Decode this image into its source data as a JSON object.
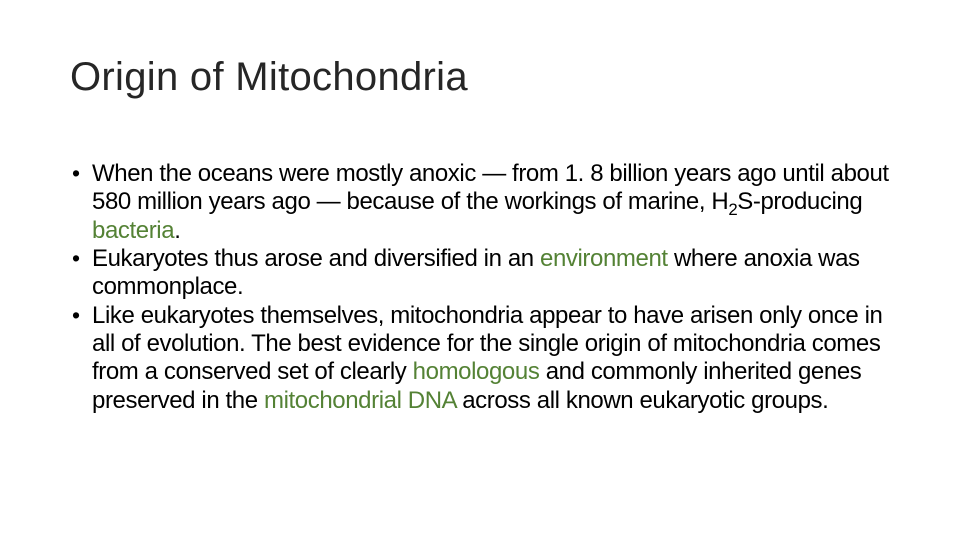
{
  "title": "Origin of Mitochondria",
  "colors": {
    "background": "#ffffff",
    "title_color": "#262626",
    "body_color": "#000000",
    "link_color": "#548235"
  },
  "typography": {
    "title_font": "Calibri Light",
    "title_size_pt": 40,
    "title_weight": 300,
    "body_font": "Arial",
    "body_size_pt": 24,
    "body_line_height": 1.18
  },
  "bullets": [
    {
      "parts": [
        {
          "text": "When the oceans were mostly anoxic — from 1. 8 billion years ago until about 580 million years ago — because of the workings of marine, "
        },
        {
          "text": "H"
        },
        {
          "text": "2",
          "sub": true
        },
        {
          "text": "S-producing "
        },
        {
          "text": "bacteria",
          "link": true
        },
        {
          "text": "."
        }
      ]
    },
    {
      "parts": [
        {
          "text": "Eukaryotes thus arose and diversified in an "
        },
        {
          "text": "environment",
          "link": true
        },
        {
          "text": " where anoxia was commonplace."
        }
      ]
    },
    {
      "parts": [
        {
          "text": "Like eukaryotes themselves, mitochondria appear to have arisen only once in all of evolution. The best evidence for the single origin of mitochondria comes from a conserved set of clearly "
        },
        {
          "text": "homologous",
          "link": true
        },
        {
          "text": " and commonly inherited genes preserved in the "
        },
        {
          "text": "mitochondrial DNA",
          "link": true
        },
        {
          "text": " across all known eukaryotic groups."
        }
      ]
    }
  ]
}
